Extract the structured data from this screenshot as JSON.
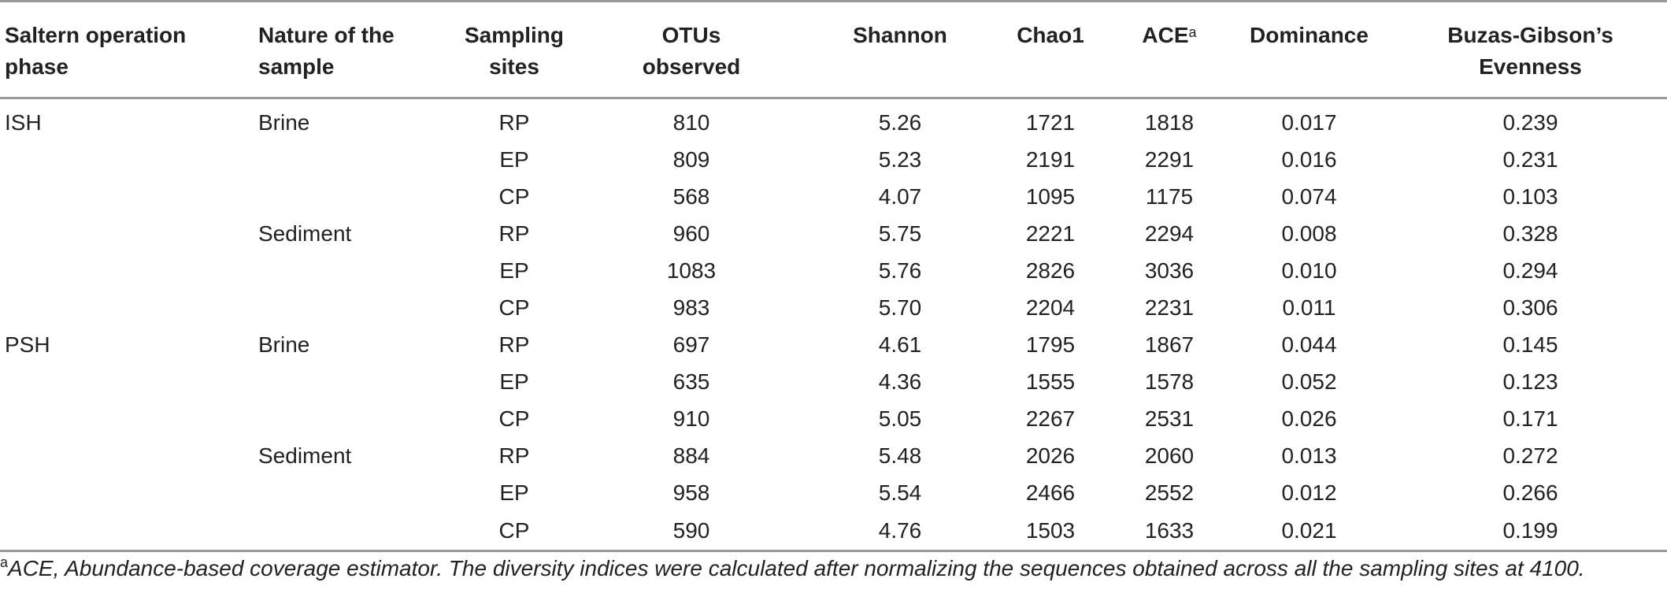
{
  "headers": {
    "phase": [
      "Saltern operation",
      "phase"
    ],
    "nature": [
      "Nature of the",
      "sample"
    ],
    "sites": [
      "Sampling",
      "sites"
    ],
    "otus": [
      "OTUs",
      "observed"
    ],
    "shannon": "Shannon",
    "chao1": "Chao1",
    "ace": "ACE",
    "ace_sup": "a",
    "dominance": "Dominance",
    "evenness": [
      "Buzas-Gibson’s",
      "Evenness"
    ]
  },
  "rows": [
    {
      "phase": "ISH",
      "nature": "Brine",
      "site": "RP",
      "otus": "810",
      "shannon": "5.26",
      "chao1": "1721",
      "ace": "1818",
      "dominance": "0.017",
      "evenness": "0.239"
    },
    {
      "phase": "",
      "nature": "",
      "site": "EP",
      "otus": "809",
      "shannon": "5.23",
      "chao1": "2191",
      "ace": "2291",
      "dominance": "0.016",
      "evenness": "0.231"
    },
    {
      "phase": "",
      "nature": "",
      "site": "CP",
      "otus": "568",
      "shannon": "4.07",
      "chao1": "1095",
      "ace": "1175",
      "dominance": "0.074",
      "evenness": "0.103"
    },
    {
      "phase": "",
      "nature": "Sediment",
      "site": "RP",
      "otus": "960",
      "shannon": "5.75",
      "chao1": "2221",
      "ace": "2294",
      "dominance": "0.008",
      "evenness": "0.328"
    },
    {
      "phase": "",
      "nature": "",
      "site": "EP",
      "otus": "1083",
      "shannon": "5.76",
      "chao1": "2826",
      "ace": "3036",
      "dominance": "0.010",
      "evenness": "0.294"
    },
    {
      "phase": "",
      "nature": "",
      "site": "CP",
      "otus": "983",
      "shannon": "5.70",
      "chao1": "2204",
      "ace": "2231",
      "dominance": "0.011",
      "evenness": "0.306"
    },
    {
      "phase": "PSH",
      "nature": "Brine",
      "site": "RP",
      "otus": "697",
      "shannon": "4.61",
      "chao1": "1795",
      "ace": "1867",
      "dominance": "0.044",
      "evenness": "0.145"
    },
    {
      "phase": "",
      "nature": "",
      "site": "EP",
      "otus": "635",
      "shannon": "4.36",
      "chao1": "1555",
      "ace": "1578",
      "dominance": "0.052",
      "evenness": "0.123"
    },
    {
      "phase": "",
      "nature": "",
      "site": "CP",
      "otus": "910",
      "shannon": "5.05",
      "chao1": "2267",
      "ace": "2531",
      "dominance": "0.026",
      "evenness": "0.171"
    },
    {
      "phase": "",
      "nature": "Sediment",
      "site": "RP",
      "otus": "884",
      "shannon": "5.48",
      "chao1": "2026",
      "ace": "2060",
      "dominance": "0.013",
      "evenness": "0.272"
    },
    {
      "phase": "",
      "nature": "",
      "site": "EP",
      "otus": "958",
      "shannon": "5.54",
      "chao1": "2466",
      "ace": "2552",
      "dominance": "0.012",
      "evenness": "0.266"
    },
    {
      "phase": "",
      "nature": "",
      "site": "CP",
      "otus": "590",
      "shannon": "4.76",
      "chao1": "1503",
      "ace": "1633",
      "dominance": "0.021",
      "evenness": "0.199"
    }
  ],
  "footnote": {
    "marker": "a",
    "text": "ACE, Abundance-based coverage estimator. The diversity indices were calculated after normalizing the sequences obtained across all the sampling sites at 4100."
  },
  "colors": {
    "rule": "#9a9a9a",
    "text": "#222222"
  }
}
